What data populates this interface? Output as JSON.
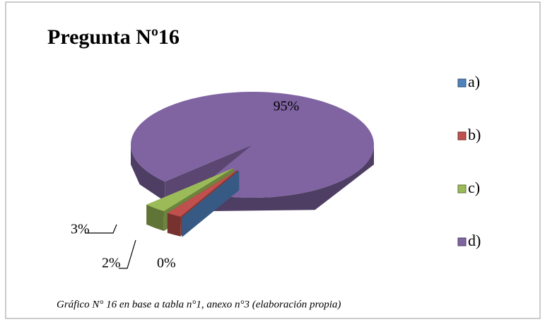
{
  "chart_data": {
    "type": "pie",
    "title": "Pregunta Nº16",
    "categories": [
      "a)",
      "b)",
      "c)",
      "d)"
    ],
    "values": [
      0,
      2,
      3,
      95
    ],
    "value_labels": [
      "0%",
      "2%",
      "3%",
      "95%"
    ],
    "colors": [
      "#4f81bd",
      "#c0504d",
      "#9bbb59",
      "#8064a2"
    ],
    "legend": "right",
    "caption": "Gráfico N° 16 en base a tabla n°1, anexo n°3 (elaboración propia)"
  }
}
